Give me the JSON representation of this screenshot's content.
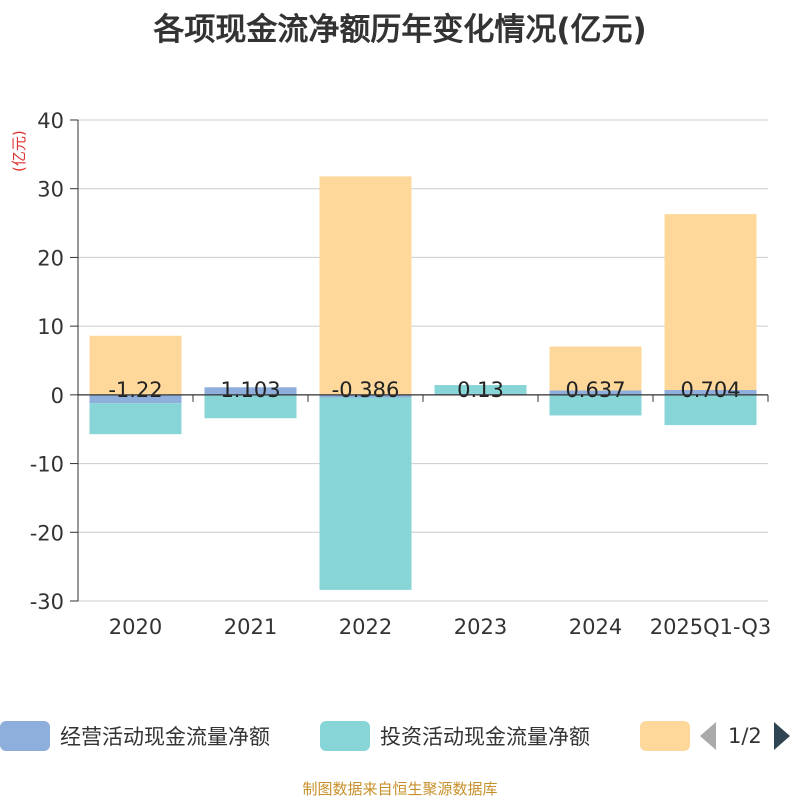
{
  "title": "各项现金流净额历年变化情况(亿元)",
  "unit_label": "(亿元)",
  "footer": "制图数据来自恒生聚源数据库",
  "legend": {
    "items": [
      {
        "label": "经营活动现金流量净额",
        "color": "#8eaedb"
      },
      {
        "label": "投资活动现金流量净额",
        "color": "#88d5d8"
      },
      {
        "label": "",
        "color": "#fdd89a"
      }
    ],
    "page": "1/2"
  },
  "chart_data": {
    "type": "bar",
    "stacked": true,
    "title": "各项现金流净额历年变化情况(亿元)",
    "ylabel": "(亿元)",
    "ylim": [
      -30,
      40
    ],
    "yticks": [
      40,
      30,
      20,
      10,
      0,
      -10,
      -20,
      -30
    ],
    "categories": [
      "2020",
      "2021",
      "2022",
      "2023",
      "2024",
      "2025Q1-Q3"
    ],
    "series": [
      {
        "name": "经营活动现金流量净额",
        "color": "#8eaedb",
        "values": [
          -1.22,
          1.103,
          -0.386,
          0.13,
          0.637,
          0.704
        ],
        "labels": [
          "-1.22",
          "1.103",
          "-0.386",
          "0.13",
          "0.637",
          "0.704"
        ]
      },
      {
        "name": "投资活动现金流量净额",
        "color": "#88d5d8",
        "values": [
          -4.5,
          -3.4,
          -28,
          1.3,
          -3.0,
          -4.4
        ]
      },
      {
        "name": "",
        "color": "#fdd89a",
        "values": [
          8.6,
          0,
          31.8,
          0,
          6.4,
          25.6
        ]
      }
    ]
  }
}
